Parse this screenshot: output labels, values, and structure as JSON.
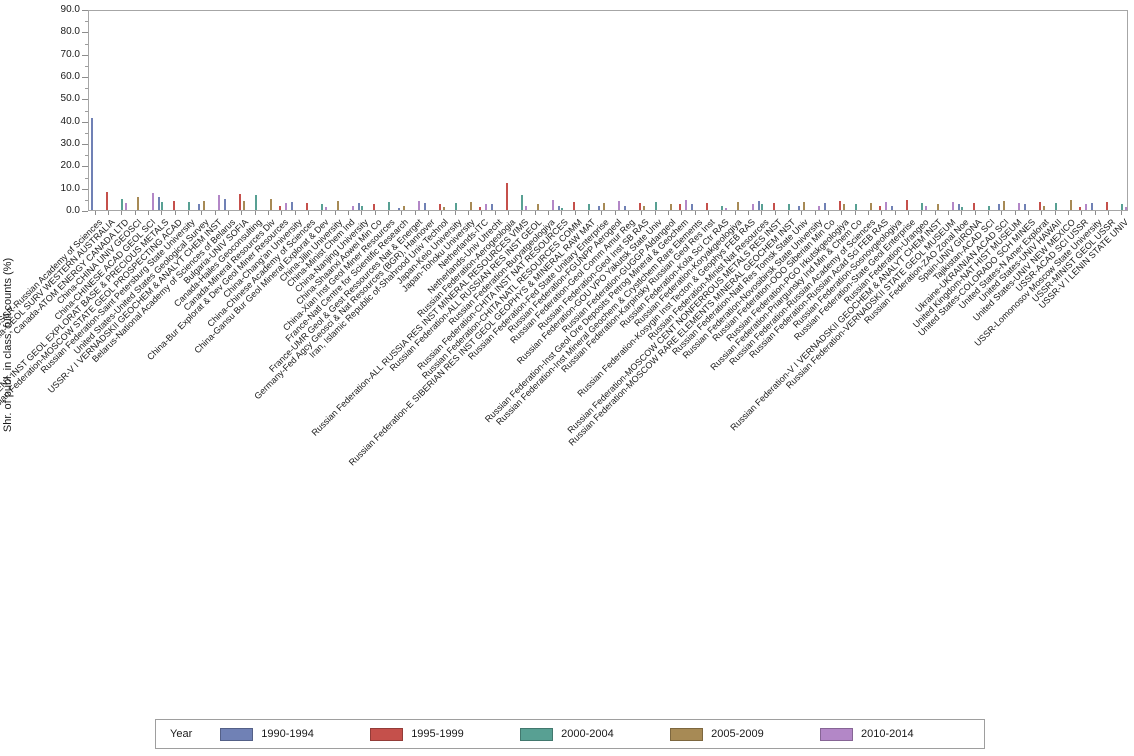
{
  "legend": {
    "title": "Year",
    "items": [
      {
        "label": "1990-1994",
        "color": "#7081b5"
      },
      {
        "label": "1995-1999",
        "color": "#c5504b"
      },
      {
        "label": "2000-2004",
        "color": "#58a093"
      },
      {
        "label": "2005-2009",
        "color": "#a78a55"
      },
      {
        "label": "2010-2014",
        "color": "#b387c7"
      }
    ]
  },
  "chart_data": {
    "type": "bar",
    "title": "",
    "xlabel": "",
    "ylabel": "Shr. of publ. in class, full counts (%)",
    "ylim": [
      0,
      90
    ],
    "ytick_step": 10,
    "ytick_labels": [
      "0.0",
      "10.0",
      "20.0",
      "30.0",
      "40.0",
      "50.0",
      "60.0",
      "70.0",
      "80.0",
      "90.0"
    ],
    "grid": false,
    "legend_position": "bottom",
    "bar_color_note": "bars are 1-2px thin; series colored per legend",
    "series_names": [
      "1990-1994",
      "1995-1999",
      "2000-2004",
      "2005-2009",
      "2010-2014"
    ],
    "categories": [
      "USSR-Russian Academy of Sciences",
      "Australia-GEOL SURV WESTERN AUSTRALIA",
      "Canada-ATOM ENERGY CANADA LTD",
      "China-CHINA UNIV GEOSCI",
      "China-CHINESE ACAD GEOL SCI",
      "Russian Federation-CENT INST GEOL EXPLORAT BASE & PRECIOUS METALS",
      "Russian Federation-MOSCOW STATE GEOL PROSPECTING ACAD",
      "Russian Federation-Saint Petersburg State University",
      "United States-United States Geological Survey",
      "USSR-V I VERNADSKII GEOCHEM & ANALYT CHEM INST",
      "Belarus-National Academy of Sciences of Belarus",
      "Bulgaria-UNIV SOFIA",
      "Canada-Hailes Geoconsulting",
      "Canada-Mineral Resources Div",
      "China-Bur Explorat & Dev Geol Miner Resources",
      "China-Chang'an University",
      "China-Chinese Academy of Sciences",
      "China-Gansu Bur Geol Mineral Explorat & Dev",
      "China-Jilin University",
      "China-Minist Chem Ind",
      "China-Nanjing University",
      "China-Shaanxi Aowei Min Co",
      "China-Xian Inst Geol Miner Resources",
      "France-Natl Centre for Scientific Research",
      "France-UMR Geol & Gest Ressources Nat & Energet",
      "Germany-Fed Agcy Geosci & Nat Resources (BGR), Hannover",
      "Iran, Islamic Republic of-Shahrood Univ Technol",
      "Japan-Keio University",
      "Japan-Tohoku University",
      "Netherlands-ITC",
      "Netherlands-Univ Utrecht",
      "Russian Federation-Aerogeologia",
      "Russian Federation-ALL RUSSIA RES INST MINERAL RESOURCES VIMS",
      "Russian Federation-ALL RUSSIAN RES INST GEOL",
      "Russian Federation-Buryatgeologiya",
      "Russian Federation-CHITA INST NAT RESOURCES",
      "Russian Federation-CHITA NATL RESOURCES COMM",
      "Russian Federation-E SIBERIAN RES INST GEOL GEOPHYS & MINERAL RAW MAT",
      "Russian Federation-Fed State Unitary Enterprise",
      "Russian Federation-FGUNPP Aerogeol",
      "Russian Federation-Geol Comm Amur Reg",
      "Russian Federation-Geol Inst SB RAS",
      "Russian Federation-GOU VPO Yakutsk State Univ",
      "Russian Federation-GUGGP Aldangeol",
      "Russian Federation-Inst Geol Ore Deposits Petrog Mineral & Geochem",
      "Russian Federation-Inst Mineral Geochem & Crystlchem Rare Elements",
      "Russian Federation-Karpinsky Russian Geol Res Inst",
      "Russian Federation-Kola Sci Ctr RAS",
      "Russian Federation-Koryakgeologiya",
      "Russian Federation-Kosygin Inst Tecton & Geophys FEB RAS",
      "Russian Federation-Minist Nat Resources",
      "Russian Federation-MOSCOW CENT NONFERROUS METALS RES INST",
      "Russian Federation-MOSCOW RARE ELEMENTS MINERAL GEOCHEM INST",
      "Russian Federation-Natl Res Tomsk State Univ",
      "Russian Federation-Novosibirsk State University",
      "Russian Federation-OOO Siberian Min Co",
      "Russian Federation-PGO Irkutskgeologiya",
      "Russian Federation-Priargunsky Ind Min & Chem Co",
      "Russian Federation-Russian Academy of Sciences",
      "Russian Federation-Russian Acad Sci FEB RAS",
      "Russian Federation-Sosnovgeologiya",
      "Russian Federation-State Geol Enterprise",
      "Russian Federation-Urangeo",
      "Russian Federation-V I VERNADSKII GEOCHEM & ANALYT CHEM INST",
      "Russian Federation-VERNADSKII STATE GEOL MUSEUM",
      "Russian Federation-ZAO Zonal Noe",
      "Spain-UNIV GIRONA",
      "Tajikistan-ACAD SCI",
      "Ukraine-UKRAINIAN ACAD SCI",
      "United Kingdom-NAT HIST MUSEUM",
      "United States-COLORADO SCH MINES",
      "United States-N Amer Explorat",
      "United States-UNIV HAWAII",
      "United States-UNIV NEW MEXICO",
      "USSR-ACAD SCI USSR",
      "USSR-Lomonosov Moscow State University",
      "USSR-MINIST GEOL USSR",
      "USSR-V I LENIN STATE UNIV"
    ],
    "bars_sparse_format": "per category: list of [series_index, value_percent]",
    "bars": [
      [
        [
          0,
          41
        ]
      ],
      [
        [
          1,
          8
        ]
      ],
      [
        [
          2,
          5
        ],
        [
          4,
          3
        ]
      ],
      [
        [
          3,
          6
        ]
      ],
      [
        [
          4,
          7.5
        ]
      ],
      [
        [
          0,
          6
        ],
        [
          2,
          3.5
        ]
      ],
      [
        [
          1,
          4
        ]
      ],
      [
        [
          2,
          3.5
        ]
      ],
      [
        [
          3,
          4
        ],
        [
          0,
          2.5
        ]
      ],
      [
        [
          4,
          6.5
        ]
      ],
      [
        [
          0,
          5
        ]
      ],
      [
        [
          1,
          7
        ],
        [
          3,
          4
        ]
      ],
      [
        [
          2,
          6.5
        ]
      ],
      [
        [
          3,
          5
        ]
      ],
      [
        [
          4,
          3
        ],
        [
          1,
          2
        ]
      ],
      [
        [
          0,
          3.5
        ]
      ],
      [
        [
          1,
          3
        ]
      ],
      [
        [
          2,
          2.5
        ],
        [
          4,
          1.5
        ]
      ],
      [
        [
          3,
          4
        ]
      ],
      [
        [
          4,
          2
        ]
      ],
      [
        [
          0,
          3
        ],
        [
          2,
          2
        ]
      ],
      [
        [
          1,
          2.5
        ]
      ],
      [
        [
          2,
          3.5
        ]
      ],
      [
        [
          3,
          2
        ],
        [
          0,
          1
        ]
      ],
      [
        [
          4,
          4
        ]
      ],
      [
        [
          0,
          3
        ]
      ],
      [
        [
          1,
          2.5
        ],
        [
          3,
          1.5
        ]
      ],
      [
        [
          2,
          3
        ]
      ],
      [
        [
          3,
          3.5
        ]
      ],
      [
        [
          4,
          2.5
        ],
        [
          1,
          1.5
        ]
      ],
      [
        [
          0,
          2.5
        ]
      ],
      [
        [
          1,
          12
        ]
      ],
      [
        [
          2,
          6.5
        ],
        [
          4,
          2
        ]
      ],
      [
        [
          3,
          2.5
        ]
      ],
      [
        [
          4,
          4.5
        ]
      ],
      [
        [
          0,
          2
        ],
        [
          2,
          1
        ]
      ],
      [
        [
          1,
          3.5
        ]
      ],
      [
        [
          2,
          2.5
        ]
      ],
      [
        [
          3,
          3
        ],
        [
          0,
          2
        ]
      ],
      [
        [
          4,
          4
        ]
      ],
      [
        [
          0,
          2
        ]
      ],
      [
        [
          1,
          3
        ],
        [
          3,
          2
        ]
      ],
      [
        [
          2,
          3.5
        ]
      ],
      [
        [
          3,
          2.5
        ]
      ],
      [
        [
          4,
          4.5
        ],
        [
          1,
          2.5
        ]
      ],
      [
        [
          0,
          2.5
        ]
      ],
      [
        [
          1,
          3
        ]
      ],
      [
        [
          2,
          2
        ],
        [
          4,
          1
        ]
      ],
      [
        [
          3,
          3.5
        ]
      ],
      [
        [
          4,
          2.5
        ]
      ],
      [
        [
          0,
          4
        ],
        [
          2,
          2.5
        ]
      ],
      [
        [
          1,
          3
        ]
      ],
      [
        [
          2,
          2.5
        ]
      ],
      [
        [
          3,
          3.5
        ],
        [
          0,
          2
        ]
      ],
      [
        [
          4,
          2
        ]
      ],
      [
        [
          0,
          3
        ]
      ],
      [
        [
          1,
          4
        ],
        [
          3,
          2.5
        ]
      ],
      [
        [
          2,
          2.5
        ]
      ],
      [
        [
          3,
          3
        ]
      ],
      [
        [
          4,
          3.5
        ],
        [
          1,
          2
        ]
      ],
      [
        [
          0,
          2
        ]
      ],
      [
        [
          1,
          4.5
        ]
      ],
      [
        [
          2,
          3
        ],
        [
          4,
          2
        ]
      ],
      [
        [
          3,
          2.5
        ]
      ],
      [
        [
          4,
          3.5
        ]
      ],
      [
        [
          0,
          2.5
        ],
        [
          2,
          1.5
        ]
      ],
      [
        [
          1,
          3
        ]
      ],
      [
        [
          2,
          2
        ]
      ],
      [
        [
          3,
          4
        ],
        [
          0,
          2.5
        ]
      ],
      [
        [
          4,
          3
        ]
      ],
      [
        [
          0,
          2.5
        ]
      ],
      [
        [
          1,
          3.5
        ],
        [
          3,
          2
        ]
      ],
      [
        [
          2,
          3
        ]
      ],
      [
        [
          3,
          4.5
        ]
      ],
      [
        [
          4,
          2.5
        ],
        [
          1,
          1.5
        ]
      ],
      [
        [
          0,
          3
        ]
      ],
      [
        [
          1,
          3.5
        ]
      ],
      [
        [
          2,
          2.5
        ],
        [
          4,
          1.5
        ]
      ]
    ]
  }
}
